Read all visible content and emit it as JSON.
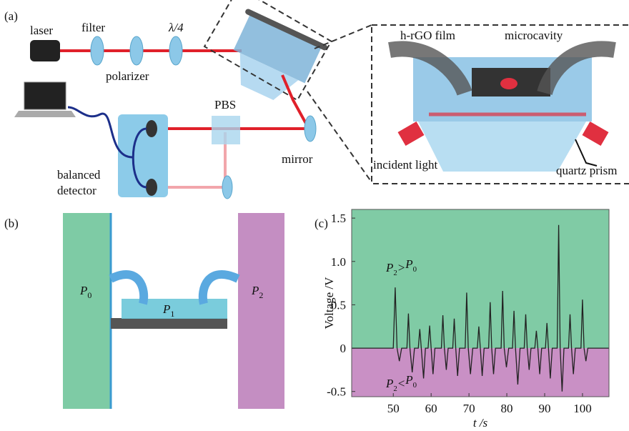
{
  "panel_labels": [
    "(a)",
    "(b)",
    "(c)"
  ],
  "setup": {
    "laser": "laser",
    "filter": "filter",
    "quarter_wave": "λ/4",
    "polarizer": "polarizer",
    "pbs": "PBS",
    "mirror": "mirror",
    "detector": [
      "balanced",
      "detector"
    ]
  },
  "inset": {
    "film": "h-rGO film",
    "cavity": "microcavity",
    "incident": "incident light",
    "prism": "quartz prism"
  },
  "pressure": {
    "left": {
      "text": "P",
      "sub": "0"
    },
    "chip": {
      "text": "P",
      "sub": "1"
    },
    "right": {
      "text": "P",
      "sub": "2"
    }
  },
  "chart_data": {
    "type": "line",
    "color": "#222222",
    "positive_fill": "#80cba5",
    "negative_fill": "#c990c5",
    "x_label": "t /s",
    "y_label": "Voltage /V",
    "annotations": [
      [
        {
          "text": "P"
        },
        {
          "text": "2",
          "sub": true
        },
        {
          "text": ">"
        },
        {
          "text": "P"
        },
        {
          "text": "0",
          "sub": true
        }
      ],
      [
        {
          "text": "P"
        },
        {
          "text": "2",
          "sub": true
        },
        {
          "text": "<"
        },
        {
          "text": "P"
        },
        {
          "text": "0",
          "sub": true
        }
      ]
    ],
    "xlim": [
      39,
      107
    ],
    "ylim": [
      -0.56,
      1.6
    ],
    "xticks": [
      50,
      60,
      70,
      80,
      90,
      100
    ],
    "yticks": [
      -0.5,
      0,
      0.5,
      {
        "value": 1,
        "label": "1.0"
      },
      1.5
    ],
    "x": [
      39,
      50.0,
      50.5,
      51.0,
      51.6,
      52.2,
      53.6,
      54.0,
      54.4,
      55.0,
      55.6,
      56.6,
      57.0,
      57.4,
      58.0,
      58.5,
      59.2,
      59.6,
      60.0,
      60.5,
      61.0,
      62.7,
      63.1,
      63.5,
      64.0,
      64.5,
      65.7,
      66.1,
      66.5,
      67.0,
      67.5,
      69.0,
      69.4,
      69.8,
      70.4,
      71.0,
      72.2,
      72.6,
      73.0,
      73.5,
      74.0,
      75.2,
      75.6,
      76.0,
      76.5,
      77.0,
      78.5,
      78.9,
      79.3,
      79.9,
      80.5,
      81.5,
      81.9,
      82.3,
      82.9,
      83.5,
      84.6,
      85.0,
      85.4,
      85.9,
      86.4,
      87.4,
      87.8,
      88.2,
      88.7,
      89.2,
      90.2,
      90.6,
      91.0,
      91.5,
      92.0,
      93.3,
      93.7,
      94.1,
      94.6,
      95.1,
      96.3,
      96.7,
      97.1,
      97.6,
      98.1,
      99.6,
      100.0,
      100.4,
      100.9,
      101.4,
      107
    ],
    "values": [
      0,
      0,
      0.7,
      0,
      -0.15,
      0,
      0,
      0.4,
      0,
      -0.28,
      0,
      0,
      0.22,
      0,
      -0.35,
      0,
      0,
      0.26,
      0,
      -0.3,
      0,
      0,
      0.38,
      0,
      -0.25,
      0,
      0,
      0.34,
      0,
      -0.32,
      0,
      0,
      0.64,
      0,
      -0.3,
      0,
      0,
      0.25,
      0,
      -0.32,
      0,
      0,
      0.53,
      0,
      -0.3,
      0,
      0,
      0.66,
      0,
      -0.22,
      0,
      0,
      0.43,
      0,
      -0.42,
      0,
      0,
      0.39,
      0,
      -0.25,
      0,
      0,
      0.2,
      0,
      -0.3,
      0,
      0,
      0.29,
      0,
      -0.35,
      0,
      0,
      1.42,
      0,
      -0.5,
      0,
      0,
      0.39,
      0,
      -0.3,
      0,
      0,
      0.56,
      0,
      -0.15,
      0,
      0
    ]
  }
}
